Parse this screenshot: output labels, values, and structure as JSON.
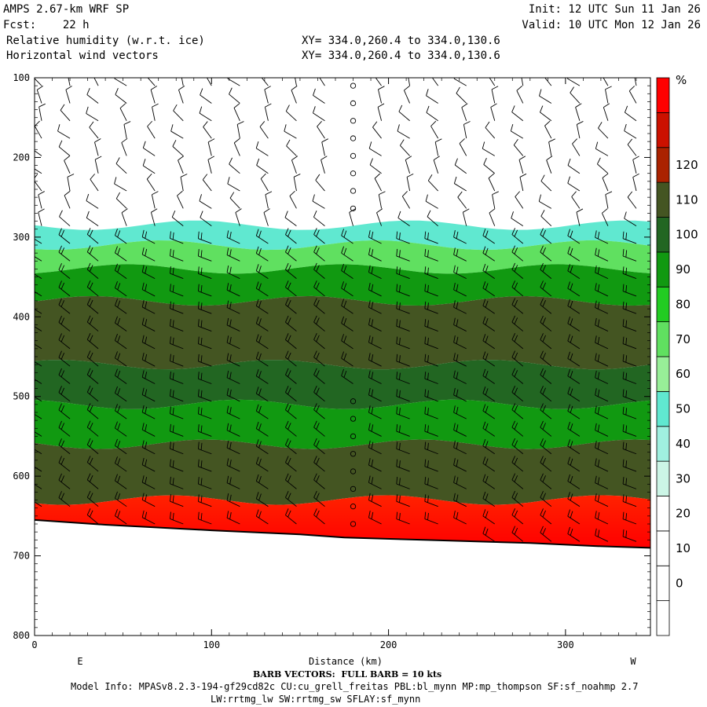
{
  "header": {
    "model": "AMPS 2.67-km WRF SP",
    "init": "Init: 12 UTC Sun 11 Jan 26",
    "fcst": "Fcst:    22 h",
    "valid": "Valid: 10 UTC Mon 12 Jan 26",
    "field1": "Relative humidity (w.r.t. ice)",
    "field2": "Horizontal wind vectors",
    "xy1": "XY= 334.0,260.4 to 334.0,130.6",
    "xy2": "XY= 334.0,260.4 to 334.0,130.6"
  },
  "footer": {
    "barb_note": "BARB VECTORS:  FULL BARB = 10 kts",
    "model_info": "Model Info: MPASv8.2.3-194-gf29cd82c CU:cu_grell_freitas PBL:bl_mynn MP:mp_thompson SF:sf_noahmp 2.7",
    "model_info2": "LW:rrtmg_lw SW:rrtmg_sw SFLAY:sf_mynn"
  },
  "chart_data": {
    "type": "heatmap",
    "xlabel": "Distance (km)",
    "ylabel": "",
    "x_ticks": [
      0,
      100,
      200,
      300
    ],
    "y_ticks": [
      100,
      200,
      300,
      400,
      500,
      600,
      700,
      800
    ],
    "xlim": [
      0,
      348
    ],
    "ylim": [
      800,
      100
    ],
    "x_end_labels": {
      "left": "E",
      "right": "W"
    },
    "colorbar": {
      "unit": "%",
      "levels": [
        0,
        10,
        20,
        30,
        40,
        50,
        60,
        70,
        80,
        90,
        100,
        110,
        120
      ],
      "colors": [
        "#ffffff",
        "#ffffff",
        "#ffffff",
        "#ffffff",
        "#ccf5e6",
        "#a0f0e0",
        "#60e8d0",
        "#98ee98",
        "#60e060",
        "#22cc22",
        "#119911",
        "#226622",
        "#445522",
        "#aa2200",
        "#cc1100",
        "#ff0000"
      ]
    },
    "terrain_profile": [
      [
        0,
        655
      ],
      [
        40,
        661
      ],
      [
        100,
        668
      ],
      [
        150,
        673
      ],
      [
        175,
        677
      ],
      [
        220,
        680
      ],
      [
        280,
        684
      ],
      [
        320,
        688
      ],
      [
        348,
        690
      ]
    ],
    "rh_layers": [
      {
        "p_top": 285,
        "p_bottom": 310,
        "rh": 35
      },
      {
        "p_top": 310,
        "p_bottom": 340,
        "rh": 55
      },
      {
        "p_top": 340,
        "p_bottom": 380,
        "rh": 75
      },
      {
        "p_top": 380,
        "p_bottom": 460,
        "rh": 95
      },
      {
        "p_top": 460,
        "p_bottom": 510,
        "rh": 85
      },
      {
        "p_top": 510,
        "p_bottom": 560,
        "rh": 75
      },
      {
        "p_top": 560,
        "p_bottom": 630,
        "rh": 92
      },
      {
        "p_top": 630,
        "p_bottom": 660,
        "rh": 120
      }
    ]
  }
}
